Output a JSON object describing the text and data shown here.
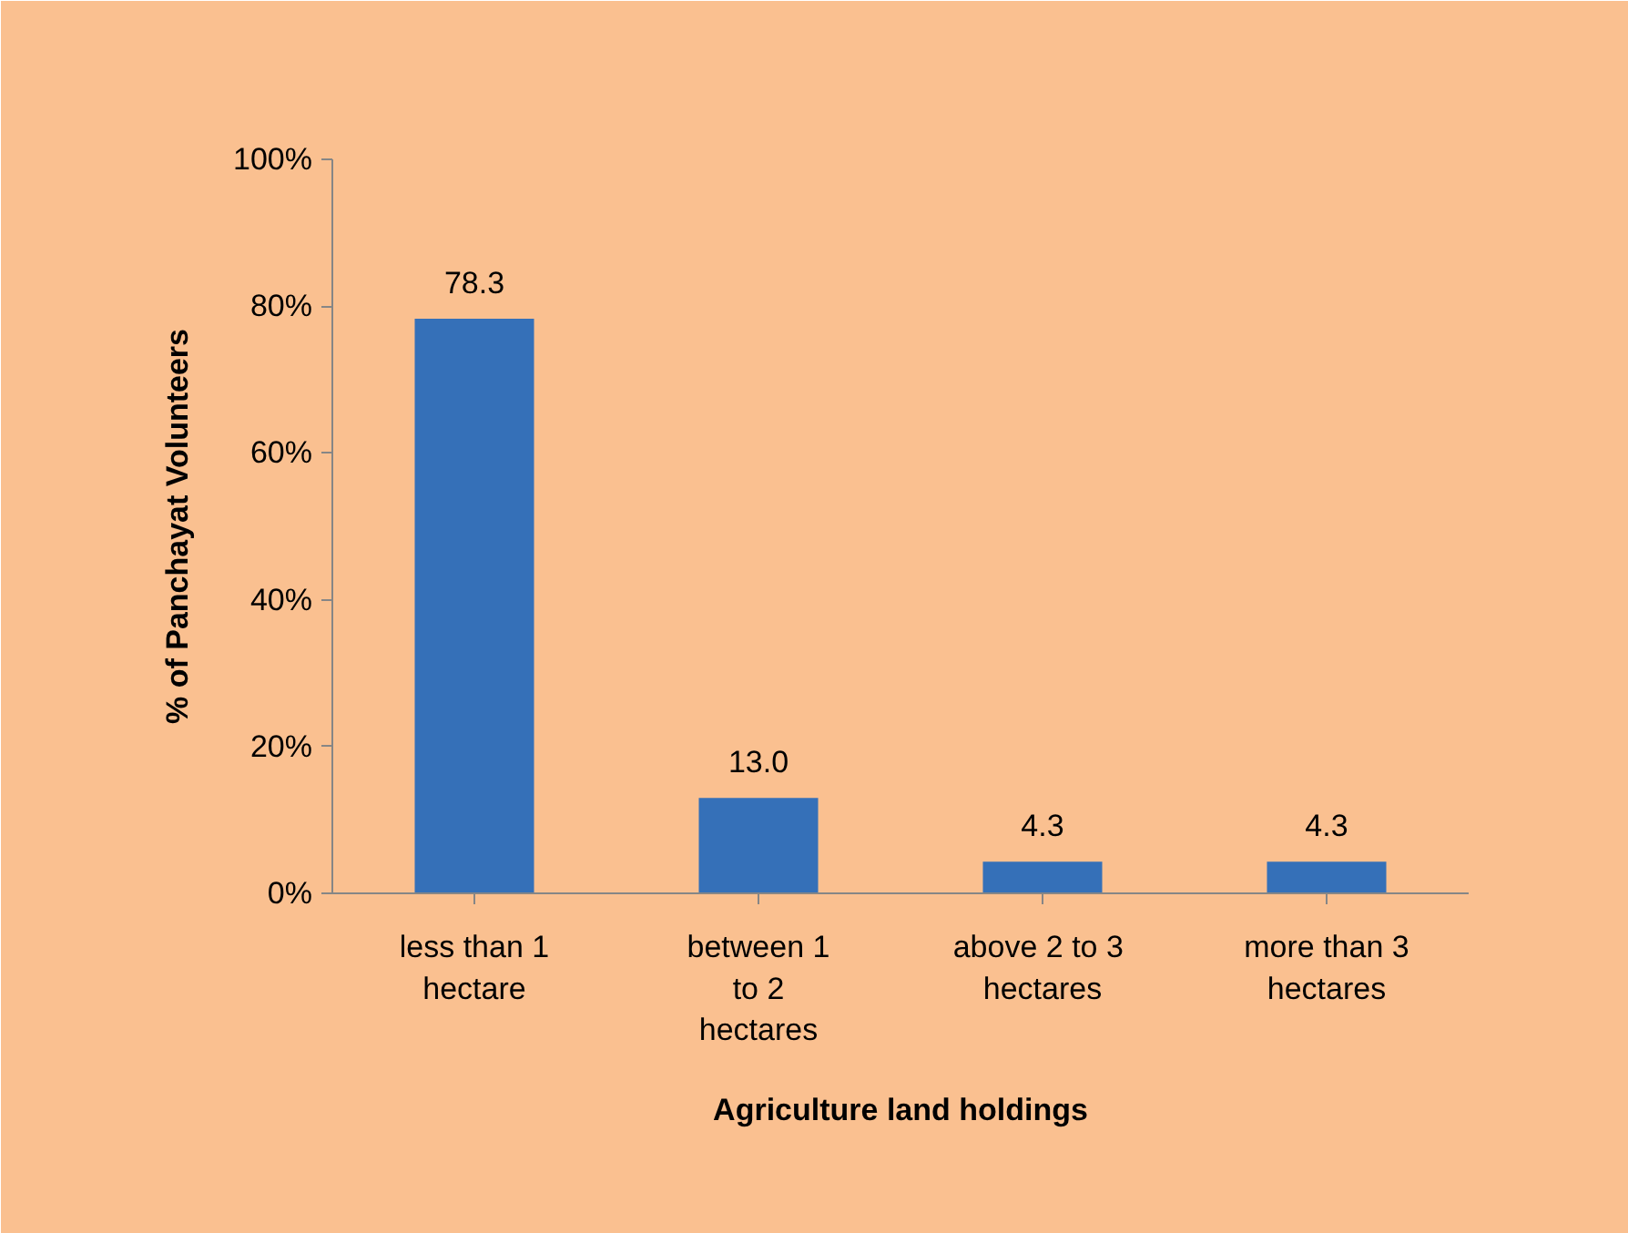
{
  "chart_data": {
    "type": "bar",
    "xlabel": "Agriculture land holdings",
    "ylabel": "% of Panchayat Volunteers",
    "categories": [
      "less than 1\nhectare",
      "between 1\nto 2\nhectares",
      "above 2  to 3\nhectares",
      "more than 3\nhectares"
    ],
    "values": [
      78.3,
      13.0,
      4.3,
      4.3
    ],
    "color": "#3570b8",
    "value_labels": [
      "78.3",
      "13.0",
      "4.3",
      "4.3"
    ],
    "ylim": [
      0,
      100
    ],
    "yticks": [
      {
        "value": 0,
        "label": "0%"
      },
      {
        "value": 20,
        "label": "20%"
      },
      {
        "value": 40,
        "label": "40%"
      },
      {
        "value": 60,
        "label": "60%"
      },
      {
        "value": 80,
        "label": "80%"
      },
      {
        "value": 100,
        "label": "100%"
      }
    ],
    "grid": false
  }
}
